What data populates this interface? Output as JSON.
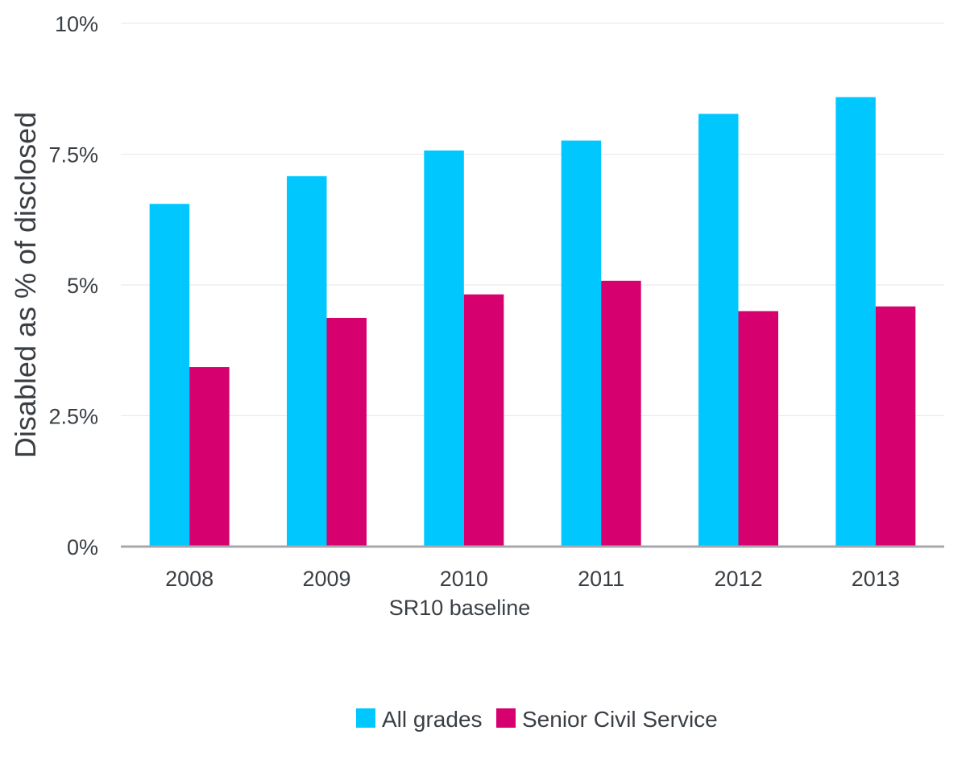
{
  "chart_data": {
    "type": "bar",
    "categories": [
      "2008",
      "2009",
      "2010",
      "2011",
      "2012",
      "2013"
    ],
    "series": [
      {
        "name": "All grades",
        "values": [
          6.55,
          7.08,
          7.57,
          7.76,
          8.27,
          8.59
        ],
        "color": "#00c8ff"
      },
      {
        "name": "Senior Civil Service",
        "values": [
          3.43,
          4.37,
          4.82,
          5.08,
          4.5,
          4.59
        ],
        "color": "#d6006f"
      }
    ],
    "ylabel": "Disabled as % of disclosed",
    "xlabel": "",
    "category_annotation": {
      "category": "2009",
      "text": "SR10 baseline"
    },
    "ylim": [
      0,
      10
    ],
    "yticks": [
      {
        "value": 0,
        "label": "0%"
      },
      {
        "value": 2.5,
        "label": "2.5%"
      },
      {
        "value": 5,
        "label": "5%"
      },
      {
        "value": 7.5,
        "label": "7.5%"
      },
      {
        "value": 10,
        "label": "10%"
      }
    ],
    "grid": true,
    "legend_position": "bottom"
  }
}
